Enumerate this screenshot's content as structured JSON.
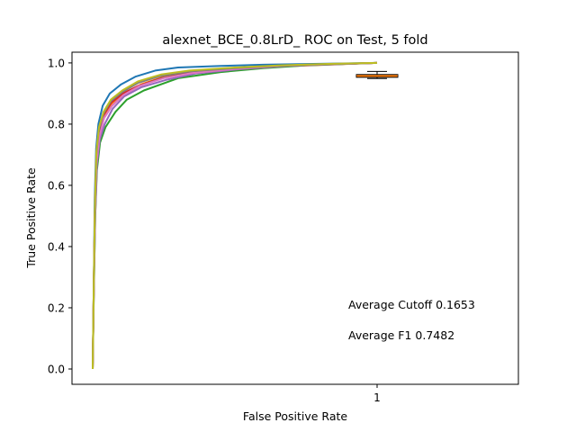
{
  "chart_data": {
    "type": "line",
    "title": "alexnet_BCE_0.8LrD_ ROC on Test, 5 fold",
    "xlabel": "False Positive Rate",
    "ylabel": "True Positive Rate",
    "x_ticks": [
      "1"
    ],
    "y_ticks": [
      "0.0",
      "0.2",
      "0.4",
      "0.6",
      "0.8",
      "1.0"
    ],
    "ylim": [
      -0.05,
      1.035
    ],
    "xlim": [
      0.0,
      1.0
    ],
    "grid": false,
    "legend": "none",
    "annotations": [
      "Average Cutoff 0.1653",
      "Average F1 0.7482"
    ],
    "series": [
      {
        "color": "#1f77b4",
        "x": [
          0.0,
          0.004,
          0.007,
          0.012,
          0.02,
          0.035,
          0.06,
          0.1,
          0.15,
          0.22,
          0.3,
          0.45,
          0.6,
          0.8,
          1.0
        ],
        "y": [
          0.0,
          0.3,
          0.55,
          0.72,
          0.8,
          0.86,
          0.9,
          0.93,
          0.955,
          0.975,
          0.985,
          0.99,
          0.994,
          0.997,
          1.0
        ]
      },
      {
        "color": "#ff7f0e",
        "x": [
          0.0,
          0.004,
          0.008,
          0.014,
          0.024,
          0.04,
          0.07,
          0.11,
          0.17,
          0.25,
          0.35,
          0.5,
          0.65,
          0.85,
          1.0
        ],
        "y": [
          0.0,
          0.28,
          0.52,
          0.69,
          0.77,
          0.83,
          0.87,
          0.9,
          0.93,
          0.955,
          0.97,
          0.98,
          0.988,
          0.995,
          1.0
        ]
      },
      {
        "color": "#2ca02c",
        "x": [
          0.0,
          0.004,
          0.009,
          0.015,
          0.026,
          0.045,
          0.08,
          0.12,
          0.18,
          0.3,
          0.45,
          0.6,
          0.75,
          0.9,
          1.0
        ],
        "y": [
          0.0,
          0.26,
          0.5,
          0.65,
          0.74,
          0.79,
          0.84,
          0.88,
          0.91,
          0.95,
          0.97,
          0.983,
          0.992,
          0.997,
          1.0
        ]
      },
      {
        "color": "#d62728",
        "x": [
          0.0,
          0.004,
          0.008,
          0.013,
          0.022,
          0.038,
          0.065,
          0.105,
          0.16,
          0.24,
          0.34,
          0.5,
          0.66,
          0.84,
          1.0
        ],
        "y": [
          0.0,
          0.3,
          0.53,
          0.7,
          0.78,
          0.83,
          0.87,
          0.9,
          0.925,
          0.95,
          0.968,
          0.98,
          0.99,
          0.996,
          1.0
        ]
      },
      {
        "color": "#9467bd",
        "x": [
          0.0,
          0.004,
          0.009,
          0.015,
          0.025,
          0.042,
          0.07,
          0.11,
          0.17,
          0.26,
          0.36,
          0.52,
          0.68,
          0.86,
          1.0
        ],
        "y": [
          0.0,
          0.27,
          0.5,
          0.67,
          0.75,
          0.8,
          0.85,
          0.89,
          0.92,
          0.945,
          0.965,
          0.98,
          0.99,
          0.996,
          1.0
        ]
      },
      {
        "color": "#8c564b",
        "x": [
          0.0,
          0.004,
          0.008,
          0.013,
          0.023,
          0.04,
          0.068,
          0.108,
          0.165,
          0.25,
          0.35,
          0.5,
          0.66,
          0.84,
          1.0
        ],
        "y": [
          0.0,
          0.29,
          0.52,
          0.69,
          0.77,
          0.82,
          0.86,
          0.895,
          0.925,
          0.952,
          0.968,
          0.981,
          0.99,
          0.996,
          1.0
        ]
      },
      {
        "color": "#e377c2",
        "x": [
          0.0,
          0.004,
          0.008,
          0.014,
          0.024,
          0.04,
          0.068,
          0.108,
          0.165,
          0.25,
          0.35,
          0.5,
          0.66,
          0.84,
          1.0
        ],
        "y": [
          0.0,
          0.28,
          0.51,
          0.68,
          0.76,
          0.82,
          0.86,
          0.895,
          0.925,
          0.95,
          0.967,
          0.98,
          0.99,
          0.996,
          1.0
        ]
      },
      {
        "color": "#7f7f7f",
        "x": [
          0.0,
          0.004,
          0.008,
          0.013,
          0.022,
          0.038,
          0.064,
          0.104,
          0.16,
          0.24,
          0.34,
          0.5,
          0.66,
          0.84,
          1.0
        ],
        "y": [
          0.0,
          0.3,
          0.53,
          0.7,
          0.785,
          0.835,
          0.875,
          0.905,
          0.935,
          0.958,
          0.972,
          0.983,
          0.991,
          0.996,
          1.0
        ]
      },
      {
        "color": "#bcbd22",
        "x": [
          0.0,
          0.004,
          0.008,
          0.013,
          0.022,
          0.038,
          0.064,
          0.104,
          0.16,
          0.24,
          0.34,
          0.5,
          0.66,
          0.84,
          1.0
        ],
        "y": [
          0.0,
          0.3,
          0.54,
          0.71,
          0.79,
          0.84,
          0.88,
          0.91,
          0.94,
          0.962,
          0.975,
          0.985,
          0.992,
          0.997,
          1.0
        ]
      }
    ],
    "boxplot": {
      "position_label": "1",
      "median": 0.958,
      "q1": 0.953,
      "q3": 0.962,
      "whisker_low": 0.949,
      "whisker_high": 0.972,
      "fill": "#ff7f0e",
      "median_color": "#ff7f0e"
    }
  }
}
